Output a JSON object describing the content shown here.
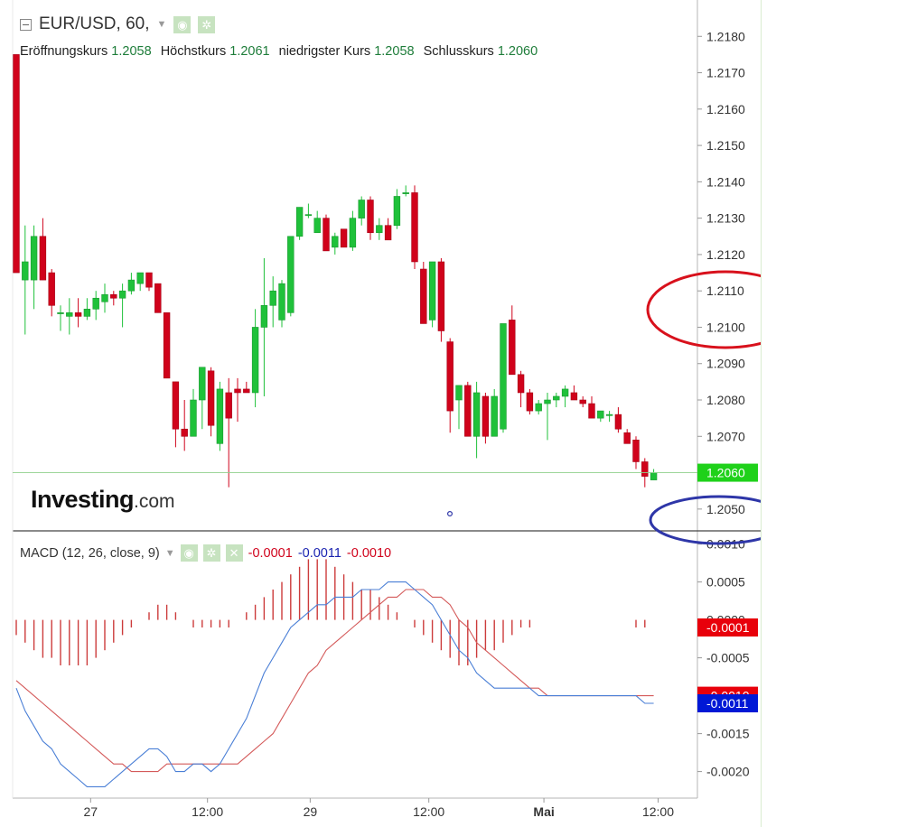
{
  "header": {
    "symbol_title": "EUR/USD, 60,",
    "ohlc": [
      {
        "label": "Eröffnungskurs",
        "value": "1.2058"
      },
      {
        "label": "Höchstkurs",
        "value": "1.2061"
      },
      {
        "label": "niedrigster Kurs",
        "value": "1.2058"
      },
      {
        "label": "Schlusskurs",
        "value": "1.2060"
      }
    ]
  },
  "logo": {
    "brand": "Investing",
    "suffix": ".com"
  },
  "macd_legend": {
    "label": "MACD (12, 26, close, 9)",
    "hist": "-0.0001",
    "macd": "-0.0011",
    "signal": "-0.0010"
  },
  "colors": {
    "up": "#1fc13a",
    "down": "#d0021b",
    "macd_line": "#4a7fd6",
    "signal_line": "#d45a5a",
    "hist": "#cc3b3b",
    "annotation_red": "#d8111c",
    "annotation_blue": "#2e36a8"
  },
  "chart_data": [
    {
      "type": "candlestick",
      "title": "EUR/USD, 60",
      "ylim": [
        1.2044,
        1.219
      ],
      "y_ticks": [
        "1.2180",
        "1.2170",
        "1.2160",
        "1.2150",
        "1.2140",
        "1.2130",
        "1.2120",
        "1.2110",
        "1.2100",
        "1.2090",
        "1.2080",
        "1.2070",
        "1.2060",
        "1.2050"
      ],
      "x_ticks": [
        "27",
        "12:00",
        "29",
        "12:00",
        "Mai",
        "12:00"
      ],
      "last_price": "1.2060",
      "ohlc": [
        [
          1.2175,
          1.2175,
          1.2115,
          1.2115
        ],
        [
          1.2113,
          1.2128,
          1.2098,
          1.2118
        ],
        [
          1.2113,
          1.2128,
          1.2105,
          1.2125
        ],
        [
          1.2125,
          1.213,
          1.2113,
          1.2113
        ],
        [
          1.2115,
          1.2116,
          1.2103,
          1.2106
        ],
        [
          1.2104,
          1.2106,
          1.2099,
          1.2104
        ],
        [
          1.2103,
          1.2108,
          1.2098,
          1.2104
        ],
        [
          1.2104,
          1.2108,
          1.21,
          1.2103
        ],
        [
          1.2103,
          1.2108,
          1.2102,
          1.2105
        ],
        [
          1.2105,
          1.211,
          1.2102,
          1.2108
        ],
        [
          1.2107,
          1.2112,
          1.2104,
          1.2109
        ],
        [
          1.2109,
          1.211,
          1.2106,
          1.2108
        ],
        [
          1.2108,
          1.2112,
          1.21,
          1.211
        ],
        [
          1.211,
          1.2115,
          1.2109,
          1.2113
        ],
        [
          1.2112,
          1.2115,
          1.211,
          1.2115
        ],
        [
          1.2115,
          1.2115,
          1.211,
          1.2111
        ],
        [
          1.2112,
          1.2112,
          1.2104,
          1.2104
        ],
        [
          1.2104,
          1.2104,
          1.2086,
          1.2086
        ],
        [
          1.2085,
          1.2085,
          1.2067,
          1.2072
        ],
        [
          1.2072,
          1.208,
          1.2066,
          1.207
        ],
        [
          1.207,
          1.2083,
          1.207,
          1.208
        ],
        [
          1.208,
          1.2089,
          1.2072,
          1.2089
        ],
        [
          1.2088,
          1.2089,
          1.207,
          1.2073
        ],
        [
          1.2068,
          1.2085,
          1.2066,
          1.2083
        ],
        [
          1.2082,
          1.2086,
          1.2056,
          1.2075
        ],
        [
          1.2083,
          1.2086,
          1.2074,
          1.2082
        ],
        [
          1.2083,
          1.2085,
          1.2082,
          1.2082
        ],
        [
          1.2082,
          1.2105,
          1.2078,
          1.21
        ],
        [
          1.21,
          1.2119,
          1.2081,
          1.2106
        ],
        [
          1.2106,
          1.2114,
          1.21,
          1.211
        ],
        [
          1.2102,
          1.2113,
          1.21,
          1.2112
        ],
        [
          1.2104,
          1.2125,
          1.2103,
          1.2125
        ],
        [
          1.2125,
          1.2133,
          1.2124,
          1.2133
        ],
        [
          1.2131,
          1.2134,
          1.213,
          1.2131
        ],
        [
          1.2126,
          1.2132,
          1.2126,
          1.213
        ],
        [
          1.213,
          1.2131,
          1.2121,
          1.2121
        ],
        [
          1.2122,
          1.2126,
          1.212,
          1.2125
        ],
        [
          1.2127,
          1.2127,
          1.2122,
          1.2122
        ],
        [
          1.2122,
          1.2132,
          1.2121,
          1.213
        ],
        [
          1.213,
          1.2136,
          1.2128,
          1.2135
        ],
        [
          1.2135,
          1.2136,
          1.2124,
          1.2126
        ],
        [
          1.2126,
          1.213,
          1.2124,
          1.2128
        ],
        [
          1.2128,
          1.213,
          1.2124,
          1.2124
        ],
        [
          1.2128,
          1.2138,
          1.2127,
          1.2136
        ],
        [
          1.2137,
          1.2139,
          1.2136,
          1.2137
        ],
        [
          1.2137,
          1.2139,
          1.2116,
          1.2118
        ],
        [
          1.2116,
          1.2118,
          1.2101,
          1.2101
        ],
        [
          1.2102,
          1.2118,
          1.21,
          1.2118
        ],
        [
          1.2118,
          1.2119,
          1.2096,
          1.2099
        ],
        [
          1.2096,
          1.2097,
          1.2071,
          1.2077
        ],
        [
          1.208,
          1.2084,
          1.2072,
          1.2084
        ],
        [
          1.2084,
          1.2085,
          1.207,
          1.207
        ],
        [
          1.207,
          1.2085,
          1.2064,
          1.2082
        ],
        [
          1.2081,
          1.2082,
          1.2068,
          1.207
        ],
        [
          1.207,
          1.2083,
          1.207,
          1.2081
        ],
        [
          1.2072,
          1.2101,
          1.2071,
          1.2101
        ],
        [
          1.2102,
          1.2106,
          1.2087,
          1.2087
        ],
        [
          1.2087,
          1.2088,
          1.2078,
          1.2082
        ],
        [
          1.2082,
          1.2083,
          1.2076,
          1.2077
        ],
        [
          1.2077,
          1.208,
          1.2076,
          1.2079
        ],
        [
          1.2079,
          1.2082,
          1.2069,
          1.208
        ],
        [
          1.208,
          1.2082,
          1.2078,
          1.2081
        ],
        [
          1.2081,
          1.2084,
          1.2078,
          1.2083
        ],
        [
          1.2082,
          1.2084,
          1.208,
          1.208
        ],
        [
          1.208,
          1.2081,
          1.2078,
          1.2079
        ],
        [
          1.2079,
          1.2081,
          1.2075,
          1.2075
        ],
        [
          1.2075,
          1.2077,
          1.2074,
          1.2077
        ],
        [
          1.2076,
          1.2077,
          1.2074,
          1.2076
        ],
        [
          1.2076,
          1.2078,
          1.2071,
          1.2072
        ],
        [
          1.2071,
          1.2072,
          1.2068,
          1.2068
        ],
        [
          1.2069,
          1.207,
          1.2061,
          1.2063
        ],
        [
          1.2063,
          1.2064,
          1.2056,
          1.2059
        ],
        [
          1.2058,
          1.2061,
          1.2058,
          1.206
        ]
      ]
    },
    {
      "type": "line",
      "title": "MACD (12, 26, close, 9)",
      "ylim": [
        -0.00235,
        0.00115
      ],
      "y_ticks": [
        "0.0010",
        "0.0005",
        "0.0000",
        "-0.0005",
        "-0.0010",
        "-0.0015",
        "-0.0020"
      ],
      "series": [
        {
          "name": "MACD",
          "values": [
            -0.0009,
            -0.0012,
            -0.0014,
            -0.0016,
            -0.0017,
            -0.0019,
            -0.002,
            -0.0021,
            -0.0022,
            -0.0022,
            -0.0022,
            -0.0021,
            -0.002,
            -0.0019,
            -0.0018,
            -0.0017,
            -0.0017,
            -0.0018,
            -0.002,
            -0.002,
            -0.0019,
            -0.0019,
            -0.002,
            -0.0019,
            -0.0017,
            -0.0015,
            -0.0013,
            -0.001,
            -0.0007,
            -0.0005,
            -0.0003,
            -0.0001,
            0.0,
            0.0001,
            0.0002,
            0.0002,
            0.0003,
            0.0003,
            0.0003,
            0.0004,
            0.0004,
            0.0004,
            0.0005,
            0.0005,
            0.0005,
            0.0004,
            0.0003,
            0.0002,
            0.0,
            -0.0002,
            -0.0004,
            -0.0005,
            -0.0007,
            -0.0008,
            -0.0009,
            -0.0009,
            -0.0009,
            -0.0009,
            -0.0009,
            -0.001,
            -0.001,
            -0.001,
            -0.001,
            -0.001,
            -0.001,
            -0.001,
            -0.001,
            -0.001,
            -0.001,
            -0.001,
            -0.001,
            -0.0011,
            -0.0011
          ]
        },
        {
          "name": "Signal",
          "values": [
            -0.0008,
            -0.0009,
            -0.001,
            -0.0011,
            -0.0012,
            -0.0013,
            -0.0014,
            -0.0015,
            -0.0016,
            -0.0017,
            -0.0018,
            -0.0019,
            -0.0019,
            -0.002,
            -0.002,
            -0.002,
            -0.002,
            -0.0019,
            -0.0019,
            -0.0019,
            -0.0019,
            -0.0019,
            -0.0019,
            -0.0019,
            -0.0019,
            -0.0019,
            -0.0018,
            -0.0017,
            -0.0016,
            -0.0015,
            -0.0013,
            -0.0011,
            -0.0009,
            -0.0007,
            -0.0006,
            -0.0004,
            -0.0003,
            -0.0002,
            -0.0001,
            0.0,
            0.0001,
            0.0002,
            0.0003,
            0.0003,
            0.0004,
            0.0004,
            0.0004,
            0.0003,
            0.0003,
            0.0002,
            0.0,
            -0.0001,
            -0.0003,
            -0.0004,
            -0.0005,
            -0.0006,
            -0.0007,
            -0.0008,
            -0.0009,
            -0.0009,
            -0.001,
            -0.001,
            -0.001,
            -0.001,
            -0.001,
            -0.001,
            -0.001,
            -0.001,
            -0.001,
            -0.001,
            -0.001,
            -0.001,
            -0.001
          ]
        },
        {
          "name": "Histogram",
          "values": [
            -0.0002,
            -0.0003,
            -0.0004,
            -0.0005,
            -0.0005,
            -0.0006,
            -0.0006,
            -0.0006,
            -0.0006,
            -0.0005,
            -0.0004,
            -0.0003,
            -0.0002,
            -0.0001,
            0.0,
            0.0001,
            0.0002,
            0.0002,
            0.0001,
            0.0,
            -0.0001,
            -0.0001,
            -0.0001,
            -0.0001,
            -0.0001,
            0.0,
            0.0001,
            0.0002,
            0.0003,
            0.0004,
            0.0005,
            0.0006,
            0.0007,
            0.0008,
            0.0008,
            0.0008,
            0.0007,
            0.0006,
            0.0005,
            0.0004,
            0.0004,
            0.0003,
            0.0002,
            0.0001,
            0.0,
            -0.0001,
            -0.0002,
            -0.0003,
            -0.0004,
            -0.0005,
            -0.0006,
            -0.0006,
            -0.0005,
            -0.0004,
            -0.0004,
            -0.0003,
            -0.0002,
            -0.0001,
            -0.0001,
            0.0,
            0.0,
            0.0,
            0.0,
            0.0,
            0.0,
            0.0,
            0.0,
            0.0,
            0.0,
            0.0,
            -0.0001,
            -0.0001
          ]
        }
      ]
    }
  ]
}
